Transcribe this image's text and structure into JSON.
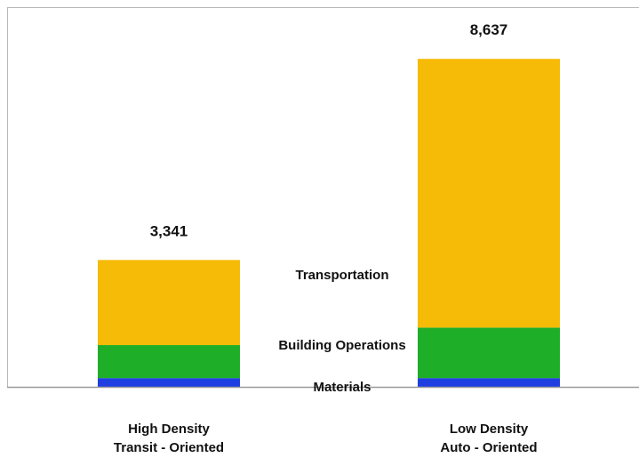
{
  "chart_data": {
    "type": "bar",
    "stacked": true,
    "categories": [
      [
        "High Density",
        "Transit - Oriented"
      ],
      [
        "Low Density",
        "Auto - Oriented"
      ]
    ],
    "series": [
      {
        "name": "Materials",
        "values": [
          230,
          230
        ],
        "color": "#1f3fe0"
      },
      {
        "name": "Building Operations",
        "values": [
          870,
          1330
        ],
        "color": "#1fae28"
      },
      {
        "name": "Transportation",
        "values": [
          2241,
          7077
        ],
        "color": "#f6bb07"
      }
    ],
    "totals": [
      3341,
      8637
    ],
    "total_labels": [
      "3,341",
      "8,637"
    ],
    "ylim": [
      0,
      10000
    ],
    "grid": false,
    "legend": "inline-center"
  }
}
